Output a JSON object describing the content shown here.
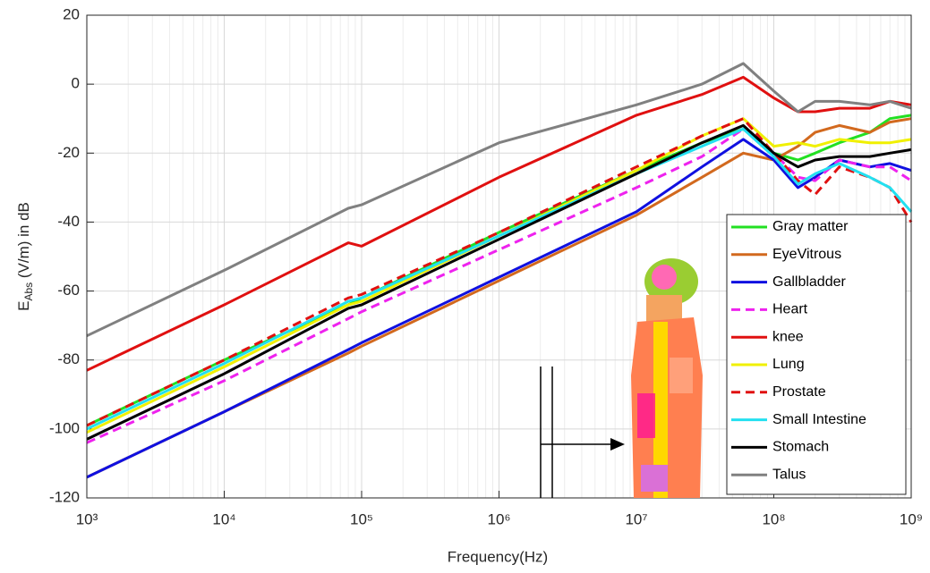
{
  "chart_data": {
    "type": "line",
    "xlabel": "Frequency(Hz)",
    "ylabel": {
      "main": "E",
      "sub": "Abs",
      "rest": " (V/m) in dB"
    },
    "xscale": "log",
    "grid": true,
    "legend": "lower right",
    "xlim": [
      1000,
      1000000000
    ],
    "ylim": [
      -120,
      20
    ],
    "xticks": [
      {
        "value": 1000,
        "label": "10³"
      },
      {
        "value": 10000,
        "label": "10⁴"
      },
      {
        "value": 100000,
        "label": "10⁵"
      },
      {
        "value": 1000000,
        "label": "10⁶"
      },
      {
        "value": 10000000,
        "label": "10⁷"
      },
      {
        "value": 100000000,
        "label": "10⁸"
      },
      {
        "value": 1000000000,
        "label": "10⁹"
      }
    ],
    "yticks": [
      -120,
      -100,
      -80,
      -60,
      -40,
      -20,
      0,
      20
    ],
    "x": [
      1000,
      10000,
      80000,
      100000,
      1000000,
      10000000,
      30000000,
      60000000,
      100000000,
      150000000,
      200000000,
      300000000,
      500000000,
      700000000,
      1000000000
    ],
    "series": [
      {
        "name": "Gray matter",
        "color": "#22e022",
        "dash": false,
        "values": [
          -99,
          -80,
          -64,
          -62,
          -43,
          -25,
          -17,
          -13,
          -20,
          -22,
          -20,
          -17,
          -14,
          -10,
          -9
        ]
      },
      {
        "name": "EyeVitrous",
        "color": "#d2691e",
        "dash": false,
        "values": [
          -114,
          -95,
          -78,
          -76,
          -57,
          -38,
          -27,
          -20,
          -22,
          -18,
          -14,
          -12,
          -14,
          -11,
          -10
        ]
      },
      {
        "name": "Gallbladder",
        "color": "#1010e0",
        "dash": false,
        "values": [
          -114,
          -95,
          -77,
          -75,
          -56,
          -37,
          -24,
          -16,
          -22,
          -30,
          -27,
          -22,
          -24,
          -23,
          -25
        ]
      },
      {
        "name": "Heart",
        "color": "#ee22ee",
        "dash": true,
        "values": [
          -104,
          -86,
          -68,
          -66,
          -48,
          -30,
          -21,
          -13,
          -20,
          -27,
          -28,
          -22,
          -24,
          -24,
          -28
        ]
      },
      {
        "name": "knee",
        "color": "#e01010",
        "dash": false,
        "values": [
          -83,
          -64,
          -46,
          -47,
          -27,
          -9,
          -3,
          2,
          -4,
          -8,
          -8,
          -7,
          -7,
          -5,
          -6
        ]
      },
      {
        "name": "Lung",
        "color": "#f0f000",
        "dash": false,
        "values": [
          -101,
          -82,
          -64,
          -63,
          -44,
          -25,
          -15,
          -10,
          -18,
          -17,
          -18,
          -16,
          -17,
          -17,
          -16
        ]
      },
      {
        "name": "Prostate",
        "color": "#e01010",
        "dash": true,
        "values": [
          -99,
          -80,
          -62,
          -61,
          -43,
          -24,
          -15,
          -10,
          -20,
          -28,
          -32,
          -24,
          -27,
          -30,
          -40
        ]
      },
      {
        "name": "Small Intestine",
        "color": "#22e0f0",
        "dash": false,
        "values": [
          -100,
          -81,
          -63,
          -62,
          -44,
          -26,
          -18,
          -13,
          -21,
          -29,
          -26,
          -23,
          -27,
          -30,
          -37
        ]
      },
      {
        "name": "Stomach",
        "color": "#000000",
        "dash": false,
        "values": [
          -103,
          -84,
          -65,
          -64,
          -45,
          -26,
          -17,
          -12,
          -20,
          -24,
          -22,
          -21,
          -21,
          -20,
          -19
        ]
      },
      {
        "name": "Talus",
        "color": "#808080",
        "dash": false,
        "values": [
          -73,
          -54,
          -36,
          -35,
          -17,
          -6,
          0,
          6,
          -2,
          -8,
          -5,
          -5,
          -6,
          -5,
          -7
        ]
      }
    ]
  }
}
